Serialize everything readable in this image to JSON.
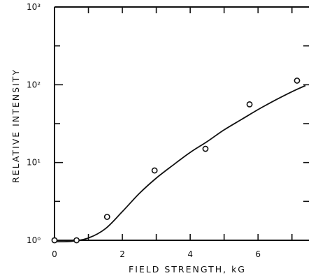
{
  "chart_data": {
    "type": "scatter",
    "xlabel": "FIELD STRENGTH, kG",
    "ylabel": "RELATIVE INTENSITY",
    "xlim": [
      0,
      7.5
    ],
    "ylim": [
      1,
      1000
    ],
    "y_scale": "log",
    "x_ticks": [
      0,
      2,
      4,
      6
    ],
    "x_tick_labels": [
      "0",
      "2",
      "4",
      "6"
    ],
    "y_ticks": [
      1,
      10,
      100,
      1000
    ],
    "y_tick_labels": [
      "10⁰",
      "10¹",
      "10²",
      "10³"
    ],
    "grid": false,
    "series": [
      {
        "kind": "points",
        "x": [
          0.0,
          0.65,
          1.55,
          2.95,
          4.45,
          5.75,
          7.15
        ],
        "y": [
          1.0,
          1.0,
          2.0,
          7.9,
          15.0,
          56.0,
          113.0
        ]
      },
      {
        "kind": "fit-curve",
        "x": [
          0.0,
          0.5,
          1.0,
          1.5,
          2.0,
          2.5,
          3.0,
          3.5,
          4.0,
          4.5,
          5.0,
          5.5,
          6.0,
          6.5,
          7.0,
          7.4
        ],
        "y": [
          0.96,
          0.97,
          1.07,
          1.41,
          2.34,
          4.0,
          6.3,
          9.3,
          13.5,
          18.6,
          26.3,
          35.5,
          47.9,
          63.1,
          81.3,
          97.7
        ]
      }
    ]
  }
}
